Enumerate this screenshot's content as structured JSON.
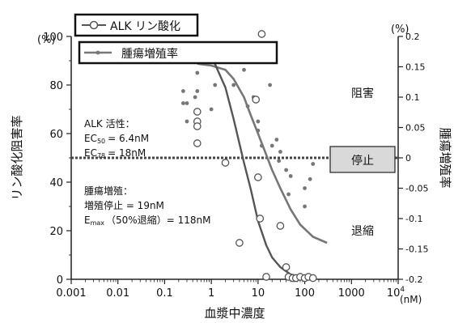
{
  "chart_data": {
    "type": "scatter",
    "xlabel": "血漿中濃度",
    "x_unit": "(nM)",
    "ylabel_left": "リン酸化阻害率",
    "ylabel_right": "腫瘍増殖率",
    "y_unit_left": "(%)",
    "y_unit_right": "(%)",
    "x_scale": "log",
    "xlim": [
      0.001,
      10000
    ],
    "x_ticks": [
      "0.001",
      "0.01",
      "0.1",
      "1",
      "10",
      "100",
      "1000",
      "10"
    ],
    "x_tick_last_exp": "4",
    "ylim_left": [
      0,
      100
    ],
    "y_ticks_left": [
      "0",
      "20",
      "40",
      "60",
      "80",
      "100"
    ],
    "ylim_right": [
      -0.2,
      0.2
    ],
    "y_ticks_right": [
      "-0.2",
      "-0.15",
      "-0.1",
      "-0.05",
      "0",
      "0.05",
      "0.1",
      "0.15",
      "0.2"
    ],
    "grid": false,
    "legend_position": "top",
    "legend": [
      {
        "name": "ALK リン酸化",
        "color": "#555555",
        "marker": "open-circle"
      },
      {
        "name": "腫瘍増殖率",
        "color": "#777777",
        "marker": "dot"
      }
    ],
    "series": [
      {
        "name": "ALK リン酸化",
        "axis": "left",
        "points": [
          {
            "x": 0.5,
            "y": 69
          },
          {
            "x": 0.5,
            "y": 65
          },
          {
            "x": 0.5,
            "y": 63
          },
          {
            "x": 0.5,
            "y": 56
          },
          {
            "x": 2,
            "y": 48
          },
          {
            "x": 4,
            "y": 15
          },
          {
            "x": 9,
            "y": 74
          },
          {
            "x": 10,
            "y": 42
          },
          {
            "x": 11,
            "y": 25
          },
          {
            "x": 12,
            "y": 101
          },
          {
            "x": 15,
            "y": 1
          },
          {
            "x": 30,
            "y": 22
          },
          {
            "x": 40,
            "y": 5
          },
          {
            "x": 45,
            "y": 1
          },
          {
            "x": 55,
            "y": 0.5
          },
          {
            "x": 65,
            "y": 0.5
          },
          {
            "x": 80,
            "y": 1
          },
          {
            "x": 100,
            "y": 0.5
          },
          {
            "x": 120,
            "y": 1
          },
          {
            "x": 150,
            "y": 0.5
          }
        ],
        "fit": [
          {
            "x": 0.4,
            "y": 96
          },
          {
            "x": 0.6,
            "y": 96
          },
          {
            "x": 1,
            "y": 92
          },
          {
            "x": 2,
            "y": 79
          },
          {
            "x": 3,
            "y": 66
          },
          {
            "x": 5,
            "y": 48
          },
          {
            "x": 7,
            "y": 37
          },
          {
            "x": 10,
            "y": 24
          },
          {
            "x": 15,
            "y": 14
          },
          {
            "x": 20,
            "y": 9
          },
          {
            "x": 30,
            "y": 5
          },
          {
            "x": 50,
            "y": 2
          },
          {
            "x": 100,
            "y": 0.7
          },
          {
            "x": 150,
            "y": 0.3
          }
        ]
      },
      {
        "name": "腫瘍増殖率",
        "axis": "right",
        "points": [
          {
            "x": 0.25,
            "y": 0.11
          },
          {
            "x": 0.25,
            "y": 0.09
          },
          {
            "x": 0.3,
            "y": 0.09
          },
          {
            "x": 0.3,
            "y": 0.06
          },
          {
            "x": 0.4,
            "y": 0.16
          },
          {
            "x": 0.45,
            "y": 0.1
          },
          {
            "x": 0.5,
            "y": 0.11
          },
          {
            "x": 0.5,
            "y": 0.14
          },
          {
            "x": 1,
            "y": 0.08
          },
          {
            "x": 1.2,
            "y": 0.12
          },
          {
            "x": 3,
            "y": 0.12
          },
          {
            "x": 5,
            "y": 0.145
          },
          {
            "x": 6,
            "y": 0.085
          },
          {
            "x": 8,
            "y": 0.1
          },
          {
            "x": 10,
            "y": 0.06
          },
          {
            "x": 10,
            "y": 0.045
          },
          {
            "x": 12,
            "y": 0.02
          },
          {
            "x": 18,
            "y": 0.12
          },
          {
            "x": 20,
            "y": 0.02
          },
          {
            "x": 25,
            "y": 0.03
          },
          {
            "x": 28,
            "y": -0.005
          },
          {
            "x": 30,
            "y": 0.01
          },
          {
            "x": 40,
            "y": -0.02
          },
          {
            "x": 45,
            "y": -0.06
          },
          {
            "x": 50,
            "y": -0.03
          },
          {
            "x": 100,
            "y": -0.05
          },
          {
            "x": 100,
            "y": -0.08
          },
          {
            "x": 130,
            "y": -0.035
          },
          {
            "x": 150,
            "y": -0.01
          }
        ],
        "fit": [
          {
            "x": 0.5,
            "y": 0.155
          },
          {
            "x": 1,
            "y": 0.152
          },
          {
            "x": 2,
            "y": 0.145
          },
          {
            "x": 3,
            "y": 0.13
          },
          {
            "x": 5,
            "y": 0.1
          },
          {
            "x": 7,
            "y": 0.07
          },
          {
            "x": 10,
            "y": 0.04
          },
          {
            "x": 15,
            "y": 0.005
          },
          {
            "x": 20,
            "y": -0.02
          },
          {
            "x": 30,
            "y": -0.05
          },
          {
            "x": 50,
            "y": -0.085
          },
          {
            "x": 80,
            "y": -0.11
          },
          {
            "x": 150,
            "y": -0.13
          },
          {
            "x": 300,
            "y": -0.14
          }
        ]
      }
    ],
    "stop_line_right_value": 0,
    "annotations": {
      "alk_title": "ALK 活性：",
      "alk_ec50_prefix": "EC",
      "alk_ec50_sub": "50",
      "alk_ec50_value": "= 6.4nM",
      "alk_ec78_prefix": "EC",
      "alk_ec78_sub": "78",
      "alk_ec78_value": "= 18nM",
      "tumor_title": "腫瘍増殖：",
      "tumor_stasis": "増殖停止 = 19nM",
      "tumor_emax_prefix": "E",
      "tumor_emax_sub": "max",
      "tumor_emax_value": "（50%退縮）= 118nM",
      "zone_inhibit": "阻害",
      "zone_stop": "停止",
      "zone_regress": "退縮"
    },
    "colors": {
      "alk": "#555555",
      "tumor": "#777777",
      "stop_line": "#444444",
      "stop_box": "#d9d9d9"
    }
  }
}
